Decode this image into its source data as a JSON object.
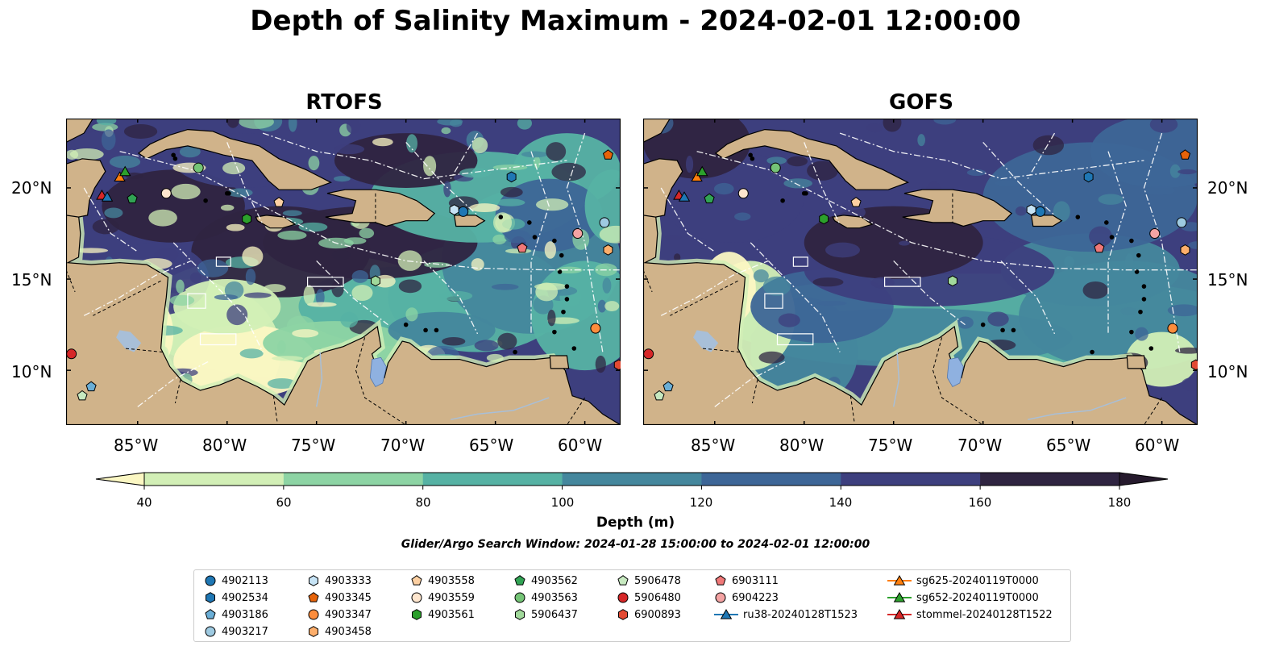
{
  "title": "Depth of Salinity Maximum - 2024-02-01 12:00:00",
  "panels": [
    {
      "title": "RTOFS"
    },
    {
      "title": "GOFS"
    }
  ],
  "axes": {
    "lon_ticks": [
      "85°W",
      "80°W",
      "75°W",
      "70°W",
      "65°W",
      "60°W"
    ],
    "lat_ticks": [
      "20°N",
      "15°N",
      "10°N"
    ],
    "lon_range": [
      -89,
      -58
    ],
    "lat_range": [
      7,
      23.8
    ]
  },
  "colorbar": {
    "label": "Depth (m)",
    "ticks": [
      "40",
      "60",
      "80",
      "100",
      "120",
      "140",
      "160",
      "180"
    ],
    "colors": [
      "#fbf7c3",
      "#d2efb6",
      "#8dd4a4",
      "#56b2a4",
      "#45879d",
      "#3d6697",
      "#3d3f7e",
      "#2f2441",
      "#261a2d"
    ],
    "extend": "both"
  },
  "colors": {
    "land": "#d0b38a",
    "lake": "#8fb1e0",
    "river": "#a8bfd8"
  },
  "search_window": "Glider/Argo Search Window: 2024-01-28 15:00:00 to 2024-02-01 12:00:00",
  "legend": [
    {
      "label": "4902113",
      "marker": "circle",
      "color": "#1f77b4"
    },
    {
      "label": "4902534",
      "marker": "hexagon",
      "color": "#1f77b4"
    },
    {
      "label": "4903186",
      "marker": "pentagon",
      "color": "#6aaed6"
    },
    {
      "label": "4903217",
      "marker": "circle",
      "color": "#9ecae1"
    },
    {
      "label": "4903333",
      "marker": "hexagon",
      "color": "#c6e3f5"
    },
    {
      "label": "4903345",
      "marker": "pentagon",
      "color": "#e6630a"
    },
    {
      "label": "4903347",
      "marker": "circle",
      "color": "#fd8d3c"
    },
    {
      "label": "4903458",
      "marker": "hexagon",
      "color": "#fdae6b"
    },
    {
      "label": "4903558",
      "marker": "pentagon",
      "color": "#fdd0a2"
    },
    {
      "label": "4903559",
      "marker": "circle",
      "color": "#fee6ce"
    },
    {
      "label": "4903561",
      "marker": "hexagon",
      "color": "#2ca02c"
    },
    {
      "label": "4903562",
      "marker": "pentagon",
      "color": "#31a354"
    },
    {
      "label": "4903563",
      "marker": "circle",
      "color": "#74c476"
    },
    {
      "label": "5906437",
      "marker": "hexagon",
      "color": "#a1d99b"
    },
    {
      "label": "5906478",
      "marker": "pentagon",
      "color": "#c7e9c0"
    },
    {
      "label": "5906480",
      "marker": "circle",
      "color": "#d62728"
    },
    {
      "label": "6900893",
      "marker": "hexagon",
      "color": "#e34a33"
    },
    {
      "label": "6903111",
      "marker": "pentagon",
      "color": "#f07878"
    },
    {
      "label": "6904223",
      "marker": "circle",
      "color": "#f4a3a3"
    },
    {
      "label": "ru38-20240128T1523",
      "marker": "triangle-line",
      "color": "#1f77b4"
    },
    {
      "label": "sg625-20240119T0000",
      "marker": "triangle-line",
      "color": "#ff7f0e"
    },
    {
      "label": "sg652-20240119T0000",
      "marker": "triangle-line",
      "color": "#2ca02c"
    },
    {
      "label": "stommel-20240128T1522",
      "marker": "triangle-line",
      "color": "#d62728"
    }
  ],
  "floats": [
    {
      "label": "4902113",
      "lon": -66.8,
      "lat": 18.7
    },
    {
      "label": "4902534",
      "lon": -64.1,
      "lat": 20.6
    },
    {
      "label": "4903186",
      "lon": -87.6,
      "lat": 9.1
    },
    {
      "label": "4903217",
      "lon": -58.9,
      "lat": 18.1
    },
    {
      "label": "4903333",
      "lon": -67.3,
      "lat": 18.8
    },
    {
      "label": "4903345",
      "lon": -58.7,
      "lat": 21.8
    },
    {
      "label": "4903347",
      "lon": -59.4,
      "lat": 12.3
    },
    {
      "label": "4903458",
      "lon": -58.7,
      "lat": 16.6
    },
    {
      "label": "4903558",
      "lon": -77.1,
      "lat": 19.2
    },
    {
      "label": "4903559",
      "lon": -83.4,
      "lat": 19.7
    },
    {
      "label": "4903561",
      "lon": -78.9,
      "lat": 18.3
    },
    {
      "label": "4903562",
      "lon": -85.3,
      "lat": 19.4
    },
    {
      "label": "4903563",
      "lon": -81.6,
      "lat": 21.1
    },
    {
      "label": "5906437",
      "lon": -71.7,
      "lat": 14.9
    },
    {
      "label": "5906478",
      "lon": -88.1,
      "lat": 8.6
    },
    {
      "label": "5906480",
      "lon": -88.7,
      "lat": 10.9
    },
    {
      "label": "6900893",
      "lon": -58.1,
      "lat": 10.3
    },
    {
      "label": "6903111",
      "lon": -63.5,
      "lat": 16.7
    },
    {
      "label": "6904223",
      "lon": -60.4,
      "lat": 17.5
    }
  ],
  "gliders": [
    {
      "label": "sg625-20240119T0000",
      "lon": -86.0,
      "lat": 20.6
    },
    {
      "label": "sg652-20240119T0000",
      "lon": -85.7,
      "lat": 20.9
    },
    {
      "label": "stommel-20240128T1522",
      "lon": -87.0,
      "lat": 19.6
    },
    {
      "label": "ru38-20240128T1523",
      "lon": -86.7,
      "lat": 19.5
    }
  ]
}
